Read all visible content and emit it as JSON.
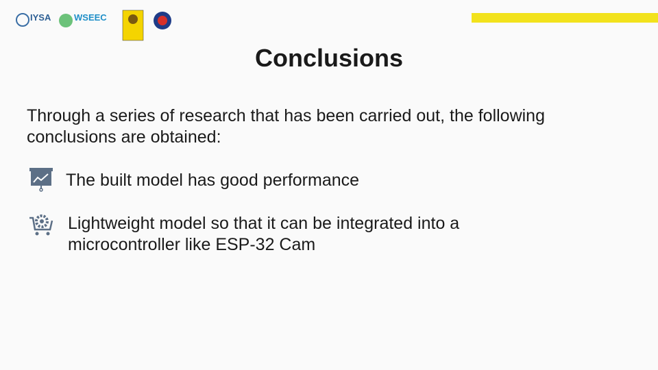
{
  "header": {
    "logos": [
      "IYSA",
      "WSEEC"
    ]
  },
  "slide": {
    "title": "Conclusions",
    "intro": "Through a series of research that has been carried out, the following conclusions are obtained:",
    "items": [
      "The built model has good performance",
      "Lightweight model so that it can be integrated into a microcontroller like ESP-32 Cam"
    ]
  }
}
